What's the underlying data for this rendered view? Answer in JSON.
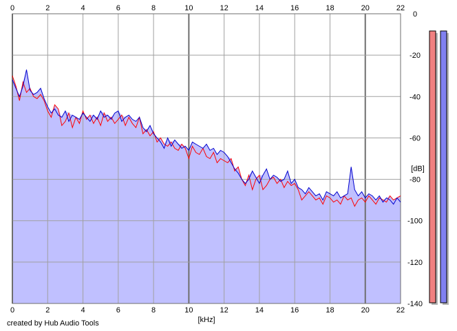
{
  "footer": {
    "credit": "created by Hub Audio Tools"
  },
  "colors": {
    "background": "#ffffff",
    "fill": "#c0c0ff",
    "grid": "#a0a0a0",
    "grid_major": "#6e6e6e",
    "series_left": "#ff0000",
    "series_right": "#0000cc",
    "meter_left": "#f08080",
    "meter_right": "#8080f0",
    "meter_shadow": "#b4b4b4"
  },
  "meters": [
    {
      "name": "left-channel-level-meter",
      "level": 1.0
    },
    {
      "name": "right-channel-level-meter",
      "level": 1.0
    }
  ],
  "chart_data": {
    "type": "line",
    "title": "",
    "xlabel": "[kHz]",
    "ylabel": "[dB]",
    "xlim": [
      0,
      22
    ],
    "ylim": [
      -140,
      0
    ],
    "xticks": [
      0,
      2,
      4,
      6,
      8,
      10,
      12,
      14,
      16,
      18,
      20,
      22
    ],
    "xtick_labels": [
      "0",
      "2",
      "4",
      "6",
      "8",
      "10",
      "12",
      "14",
      "16",
      "18",
      "20",
      "22"
    ],
    "yticks": [
      0,
      -20,
      -40,
      -60,
      -80,
      -100,
      -120,
      -140
    ],
    "ytick_labels": [
      "0",
      "-20",
      "-40",
      "-60",
      "-80",
      "-100",
      "-120",
      "-140"
    ],
    "grid": true,
    "filled_area": true,
    "series": [
      {
        "x": [
          0,
          0.2,
          0.4,
          0.6,
          0.8,
          1.0,
          1.2,
          1.4,
          1.6,
          1.8,
          2.0,
          2.2,
          2.4,
          2.6,
          2.8,
          3.0,
          3.2,
          3.4,
          3.6,
          3.8,
          4.0,
          4.2,
          4.4,
          4.6,
          4.8,
          5.0,
          5.2,
          5.4,
          5.6,
          5.8,
          6.0,
          6.2,
          6.4,
          6.6,
          6.8,
          7.0,
          7.2,
          7.4,
          7.6,
          7.8,
          8.0,
          8.2,
          8.4,
          8.6,
          8.8,
          9.0,
          9.2,
          9.4,
          9.6,
          9.8,
          10.0,
          10.2,
          10.4,
          10.6,
          10.8,
          11.0,
          11.2,
          11.4,
          11.6,
          11.8,
          12.0,
          12.2,
          12.4,
          12.6,
          12.8,
          13.0,
          13.2,
          13.4,
          13.6,
          13.8,
          14.0,
          14.2,
          14.4,
          14.6,
          14.8,
          15.0,
          15.2,
          15.4,
          15.6,
          15.8,
          16.0,
          16.2,
          16.4,
          16.6,
          16.8,
          17.0,
          17.2,
          17.4,
          17.6,
          17.8,
          18.0,
          18.2,
          18.4,
          18.6,
          18.8,
          19.0,
          19.2,
          19.4,
          19.6,
          19.8,
          20.0,
          20.2,
          20.4,
          20.6,
          20.8,
          21.0,
          21.2,
          21.4,
          21.6,
          21.8,
          22.0
        ],
        "values": [
          -30,
          -35,
          -42,
          -33,
          -38,
          -36,
          -40,
          -41,
          -39,
          -42,
          -47,
          -50,
          -44,
          -46,
          -54,
          -52,
          -48,
          -55,
          -50,
          -53,
          -47,
          -51,
          -49,
          -53,
          -50,
          -54,
          -48,
          -52,
          -50,
          -53,
          -51,
          -49,
          -54,
          -50,
          -53,
          -55,
          -50,
          -58,
          -56,
          -59,
          -57,
          -62,
          -60,
          -63,
          -64,
          -62,
          -65,
          -66,
          -63,
          -65,
          -70,
          -64,
          -67,
          -68,
          -65,
          -69,
          -70,
          -67,
          -72,
          -70,
          -71,
          -72,
          -70,
          -76,
          -74,
          -80,
          -83,
          -78,
          -85,
          -80,
          -78,
          -85,
          -83,
          -80,
          -79,
          -82,
          -80,
          -84,
          -81,
          -83,
          -82,
          -85,
          -90,
          -88,
          -86,
          -88,
          -90,
          -89,
          -92,
          -88,
          -89,
          -91,
          -90,
          -92,
          -88,
          -90,
          -89,
          -93,
          -90,
          -89,
          -91,
          -88,
          -90,
          -92,
          -89,
          -90,
          -91,
          -88,
          -90,
          -89,
          -88
        ]
      },
      {
        "x": [
          0,
          0.2,
          0.4,
          0.6,
          0.8,
          1.0,
          1.2,
          1.4,
          1.6,
          1.8,
          2.0,
          2.2,
          2.4,
          2.6,
          2.8,
          3.0,
          3.2,
          3.4,
          3.6,
          3.8,
          4.0,
          4.2,
          4.4,
          4.6,
          4.8,
          5.0,
          5.2,
          5.4,
          5.6,
          5.8,
          6.0,
          6.2,
          6.4,
          6.6,
          6.8,
          7.0,
          7.2,
          7.4,
          7.6,
          7.8,
          8.0,
          8.2,
          8.4,
          8.6,
          8.8,
          9.0,
          9.2,
          9.4,
          9.6,
          9.8,
          10.0,
          10.2,
          10.4,
          10.6,
          10.8,
          11.0,
          11.2,
          11.4,
          11.6,
          11.8,
          12.0,
          12.2,
          12.4,
          12.6,
          12.8,
          13.0,
          13.2,
          13.4,
          13.6,
          13.8,
          14.0,
          14.2,
          14.4,
          14.6,
          14.8,
          15.0,
          15.2,
          15.4,
          15.6,
          15.8,
          16.0,
          16.2,
          16.4,
          16.6,
          16.8,
          17.0,
          17.2,
          17.4,
          17.6,
          17.8,
          18.0,
          18.2,
          18.4,
          18.6,
          18.8,
          19.0,
          19.2,
          19.4,
          19.6,
          19.8,
          20.0,
          20.2,
          20.4,
          20.6,
          20.8,
          21.0,
          21.2,
          21.4,
          21.6,
          21.8,
          22.0
        ],
        "values": [
          -32,
          -36,
          -40,
          -35,
          -27,
          -37,
          -39,
          -38,
          -36,
          -41,
          -45,
          -48,
          -46,
          -49,
          -50,
          -47,
          -52,
          -49,
          -50,
          -51,
          -48,
          -50,
          -52,
          -49,
          -51,
          -47,
          -50,
          -49,
          -51,
          -48,
          -47,
          -52,
          -50,
          -49,
          -51,
          -52,
          -50,
          -55,
          -57,
          -54,
          -58,
          -60,
          -62,
          -65,
          -60,
          -64,
          -61,
          -63,
          -65,
          -64,
          -66,
          -62,
          -63,
          -64,
          -65,
          -63,
          -66,
          -65,
          -68,
          -66,
          -67,
          -69,
          -72,
          -75,
          -77,
          -80,
          -82,
          -80,
          -76,
          -79,
          -82,
          -78,
          -75,
          -80,
          -78,
          -79,
          -81,
          -80,
          -76,
          -82,
          -80,
          -84,
          -85,
          -87,
          -84,
          -86,
          -88,
          -87,
          -90,
          -86,
          -87,
          -88,
          -86,
          -89,
          -88,
          -87,
          -74,
          -85,
          -88,
          -86,
          -89,
          -87,
          -88,
          -90,
          -88,
          -91,
          -89,
          -90,
          -92,
          -89,
          -91
        ]
      }
    ]
  }
}
